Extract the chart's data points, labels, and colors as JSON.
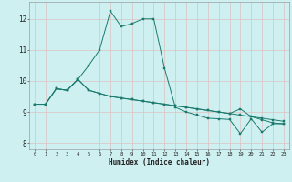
{
  "xlabel": "Humidex (Indice chaleur)",
  "bg_color": "#cff0f0",
  "grid_color": "#b8dcdc",
  "line_color": "#1a7a6e",
  "xlim": [
    -0.5,
    23.5
  ],
  "ylim": [
    7.8,
    12.55
  ],
  "yticks": [
    8,
    9,
    10,
    11,
    12
  ],
  "xticks": [
    0,
    1,
    2,
    3,
    4,
    5,
    6,
    7,
    8,
    9,
    10,
    11,
    12,
    13,
    14,
    15,
    16,
    17,
    18,
    19,
    20,
    21,
    22,
    23
  ],
  "series1_x": [
    0,
    1,
    2,
    3,
    4,
    5,
    6,
    7,
    8,
    9,
    10,
    11,
    12,
    13,
    14,
    15,
    16,
    17,
    18,
    19,
    20,
    21,
    22,
    23
  ],
  "series1_y": [
    9.25,
    9.25,
    9.75,
    9.7,
    10.05,
    9.7,
    9.6,
    9.5,
    9.45,
    9.4,
    9.35,
    9.3,
    9.25,
    9.2,
    9.15,
    9.1,
    9.05,
    9.0,
    8.95,
    8.9,
    8.85,
    8.8,
    8.75,
    8.7
  ],
  "series2_x": [
    0,
    1,
    2,
    3,
    4,
    5,
    6,
    7,
    8,
    9,
    10,
    11,
    12,
    13,
    14,
    15,
    16,
    17,
    18,
    19,
    20,
    21,
    22,
    23
  ],
  "series2_y": [
    9.25,
    9.25,
    9.75,
    9.7,
    10.05,
    10.5,
    11.0,
    12.25,
    11.75,
    11.85,
    12.0,
    12.0,
    10.4,
    9.15,
    9.0,
    8.9,
    8.8,
    8.78,
    8.76,
    8.3,
    8.78,
    8.35,
    8.62,
    8.62
  ],
  "series3_x": [
    0,
    1,
    2,
    3,
    4,
    5,
    6,
    7,
    8,
    9,
    10,
    11,
    12,
    13,
    14,
    15,
    16,
    17,
    18,
    19,
    20,
    21,
    22,
    23
  ],
  "series3_y": [
    9.25,
    9.25,
    9.75,
    9.7,
    10.05,
    9.7,
    9.6,
    9.5,
    9.45,
    9.4,
    9.35,
    9.3,
    9.25,
    9.2,
    9.15,
    9.1,
    9.05,
    9.0,
    8.95,
    9.1,
    8.85,
    8.75,
    8.65,
    8.62
  ]
}
